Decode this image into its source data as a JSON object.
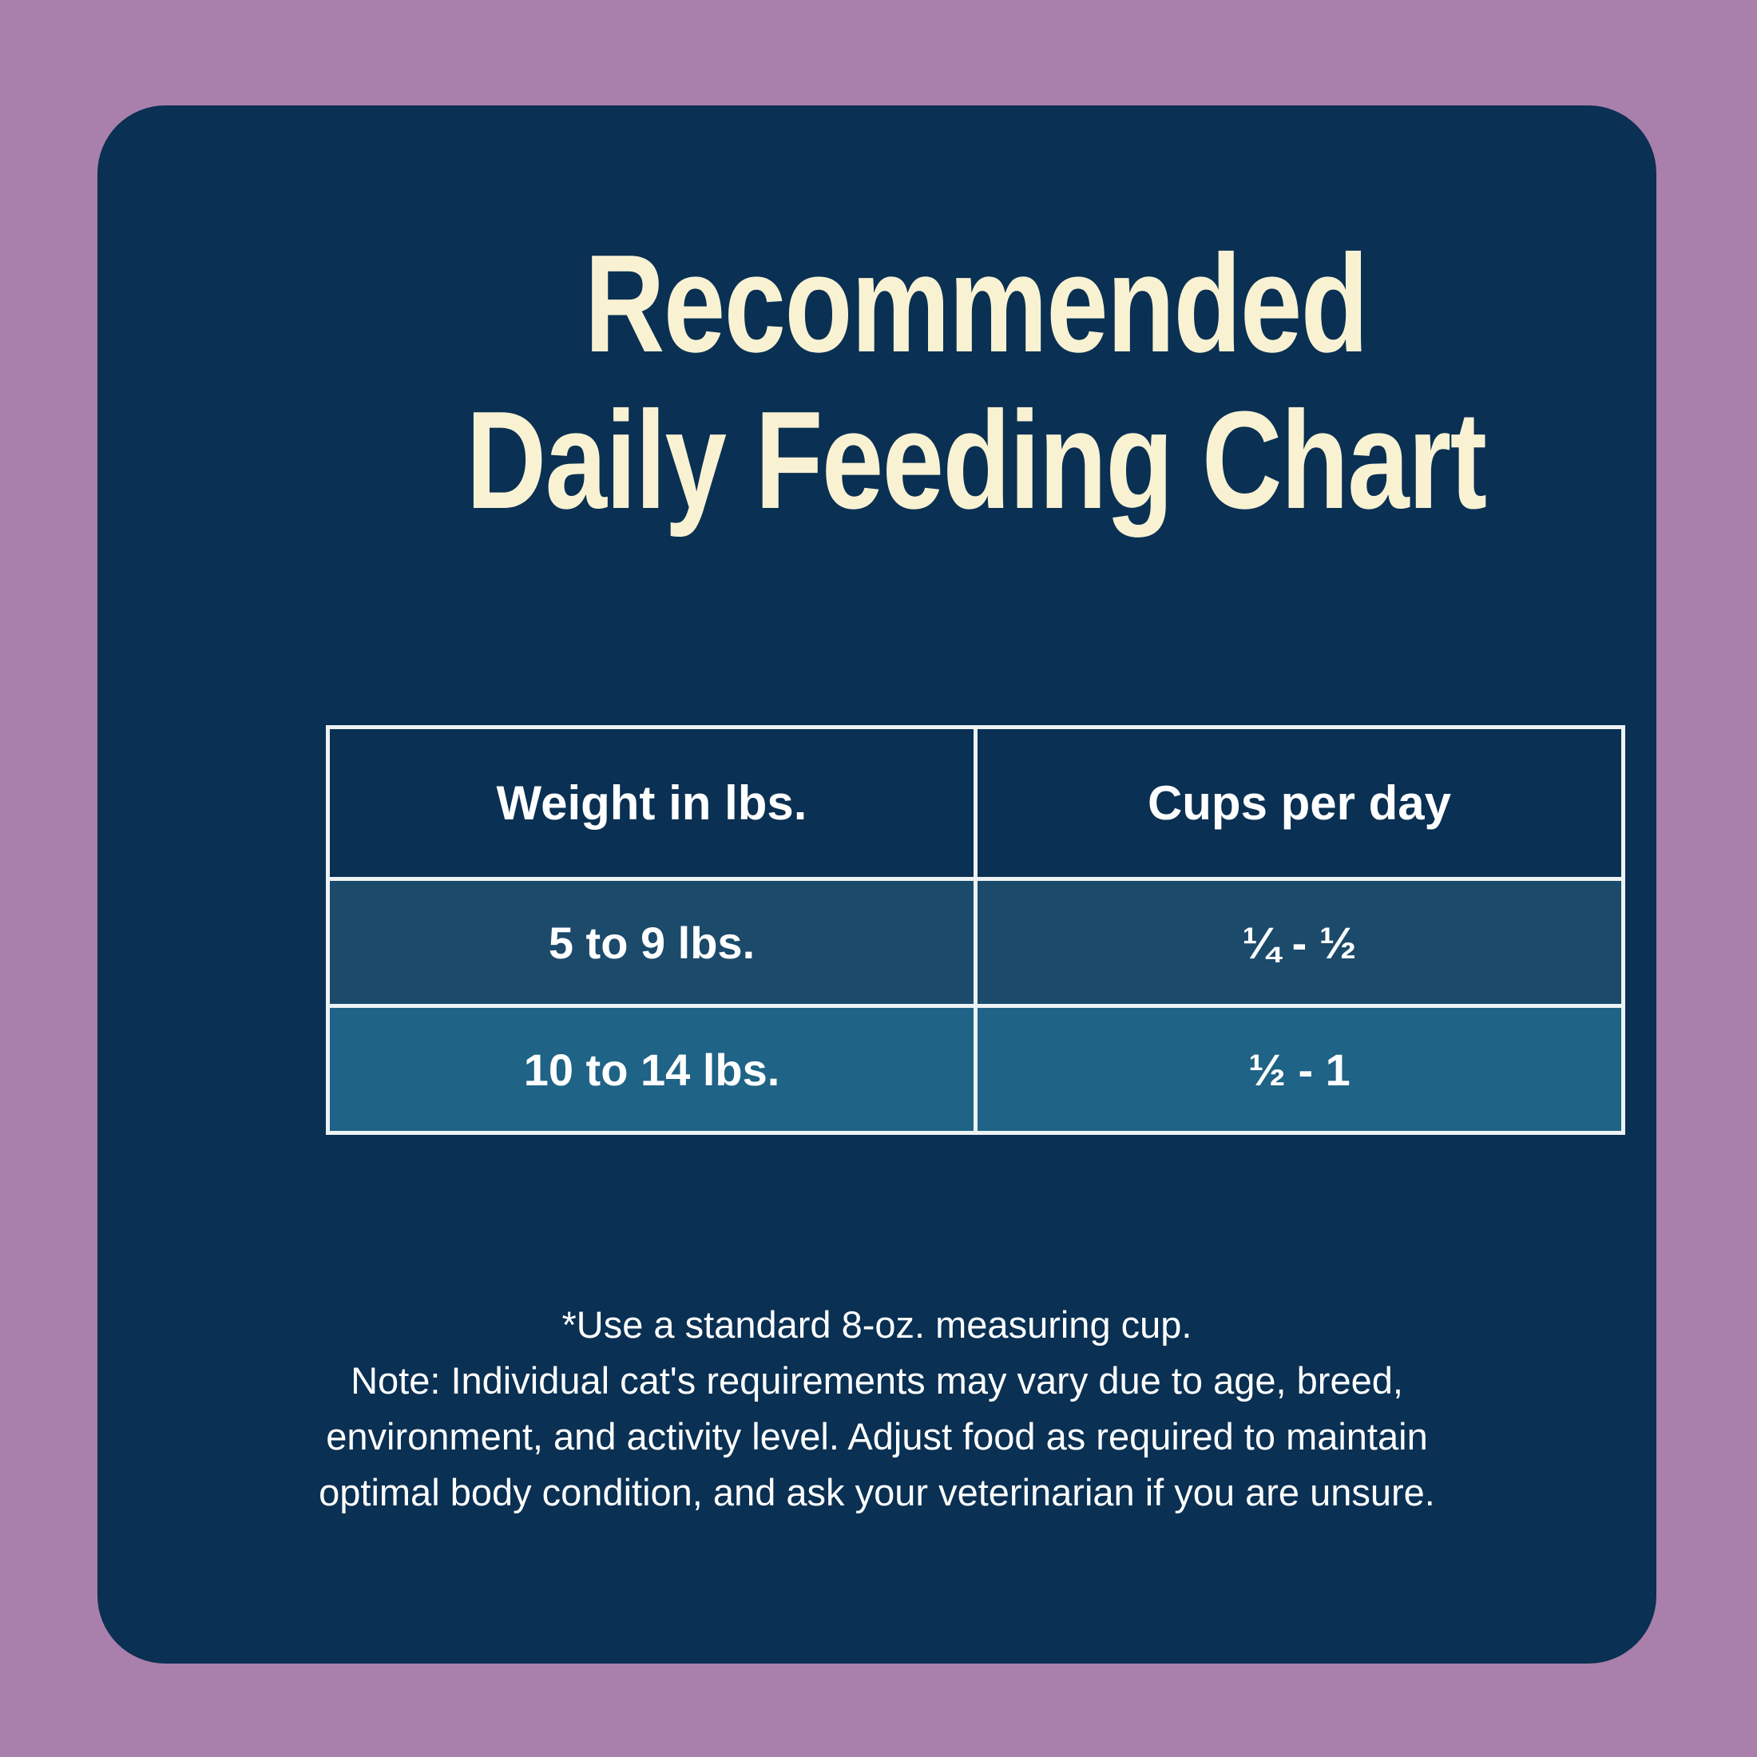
{
  "title": {
    "line1": "Recommended",
    "line2": "Daily Feeding Chart"
  },
  "table": {
    "headers": [
      "Weight in lbs.",
      "Cups per day"
    ],
    "rows": [
      {
        "weight": "5 to 9 lbs.",
        "cups": "¼ - ½"
      },
      {
        "weight": "10 to 14 lbs.",
        "cups": "½ - 1"
      }
    ]
  },
  "note": {
    "usage": "*Use a standard 8-oz. measuring cup.",
    "disclaimer": "Note: Individual cat's requirements may vary due to age, breed, environment, and activity level. Adjust food as required to maintain optimal body condition, and ask your veterinarian if you are unsure."
  },
  "colors": {
    "background_purple": "#a980ab",
    "card_navy": "#0a3053",
    "row_blue": "#1b4a6b",
    "row_teal": "#1f6386",
    "table_border_white": "#edf2f4",
    "title_cream": "#f8f2d3",
    "text_white": "#ffffff"
  },
  "chart_data": {
    "type": "table",
    "title": "Recommended Daily Feeding Chart",
    "columns": [
      "Weight in lbs.",
      "Cups per day"
    ],
    "rows": [
      [
        "5 to 9 lbs.",
        "¼ - ½"
      ],
      [
        "10 to 14 lbs.",
        "½ - 1"
      ]
    ],
    "footnote": "*Use a standard 8-oz. measuring cup. Note: Individual cat's requirements may vary due to age, breed, environment, and activity level. Adjust food as required to maintain optimal body condition, and ask your veterinarian if you are unsure.",
    "layout_hints": {
      "header_background": "#0a3053",
      "row_backgrounds": [
        "#1b4a6b",
        "#1f6386"
      ],
      "grid": true
    }
  }
}
